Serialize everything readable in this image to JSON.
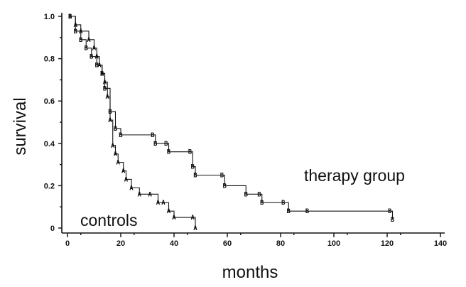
{
  "chart_data": {
    "type": "line",
    "title": "",
    "xlabel": "months",
    "ylabel": "survival",
    "xlim": [
      0,
      140
    ],
    "ylim": [
      0,
      1.0
    ],
    "x_ticks": [
      "0",
      "20",
      "40",
      "60",
      "80",
      "100",
      "120",
      "140"
    ],
    "y_ticks": [
      "0",
      "0.2",
      "0.4",
      "0.6",
      "0.8",
      "1.0"
    ],
    "grid": false,
    "legend": "none",
    "annotations": [
      {
        "text": "therapy group",
        "series": "B"
      },
      {
        "text": "controls",
        "series": "A"
      }
    ],
    "series": [
      {
        "name": "controls",
        "marker": "A",
        "points": [
          [
            1,
            1.0
          ],
          [
            3,
            0.96
          ],
          [
            5,
            0.93
          ],
          [
            8,
            0.89
          ],
          [
            10,
            0.85
          ],
          [
            11,
            0.81
          ],
          [
            12,
            0.77
          ],
          [
            13,
            0.73
          ],
          [
            14,
            0.69
          ],
          [
            15,
            0.62
          ],
          [
            16,
            0.51
          ],
          [
            17,
            0.39
          ],
          [
            18,
            0.35
          ],
          [
            19,
            0.31
          ],
          [
            21,
            0.27
          ],
          [
            22,
            0.23
          ],
          [
            24,
            0.19
          ],
          [
            27,
            0.16
          ],
          [
            31,
            0.16
          ],
          [
            34,
            0.12
          ],
          [
            36,
            0.12
          ],
          [
            38,
            0.08
          ],
          [
            40,
            0.05
          ],
          [
            47,
            0.05
          ],
          [
            48,
            0.0
          ]
        ]
      },
      {
        "name": "therapy group",
        "marker": "B",
        "points": [
          [
            1,
            1.0
          ],
          [
            3,
            0.93
          ],
          [
            5,
            0.89
          ],
          [
            7,
            0.85
          ],
          [
            9,
            0.81
          ],
          [
            11,
            0.77
          ],
          [
            13,
            0.73
          ],
          [
            14,
            0.66
          ],
          [
            16,
            0.55
          ],
          [
            18,
            0.47
          ],
          [
            20,
            0.44
          ],
          [
            32,
            0.44
          ],
          [
            33,
            0.4
          ],
          [
            37,
            0.4
          ],
          [
            38,
            0.36
          ],
          [
            46,
            0.36
          ],
          [
            47,
            0.29
          ],
          [
            48,
            0.25
          ],
          [
            58,
            0.25
          ],
          [
            59,
            0.2
          ],
          [
            67,
            0.16
          ],
          [
            72,
            0.16
          ],
          [
            73,
            0.12
          ],
          [
            81,
            0.12
          ],
          [
            83,
            0.08
          ],
          [
            90,
            0.08
          ],
          [
            121,
            0.08
          ],
          [
            122,
            0.04
          ]
        ]
      }
    ]
  }
}
